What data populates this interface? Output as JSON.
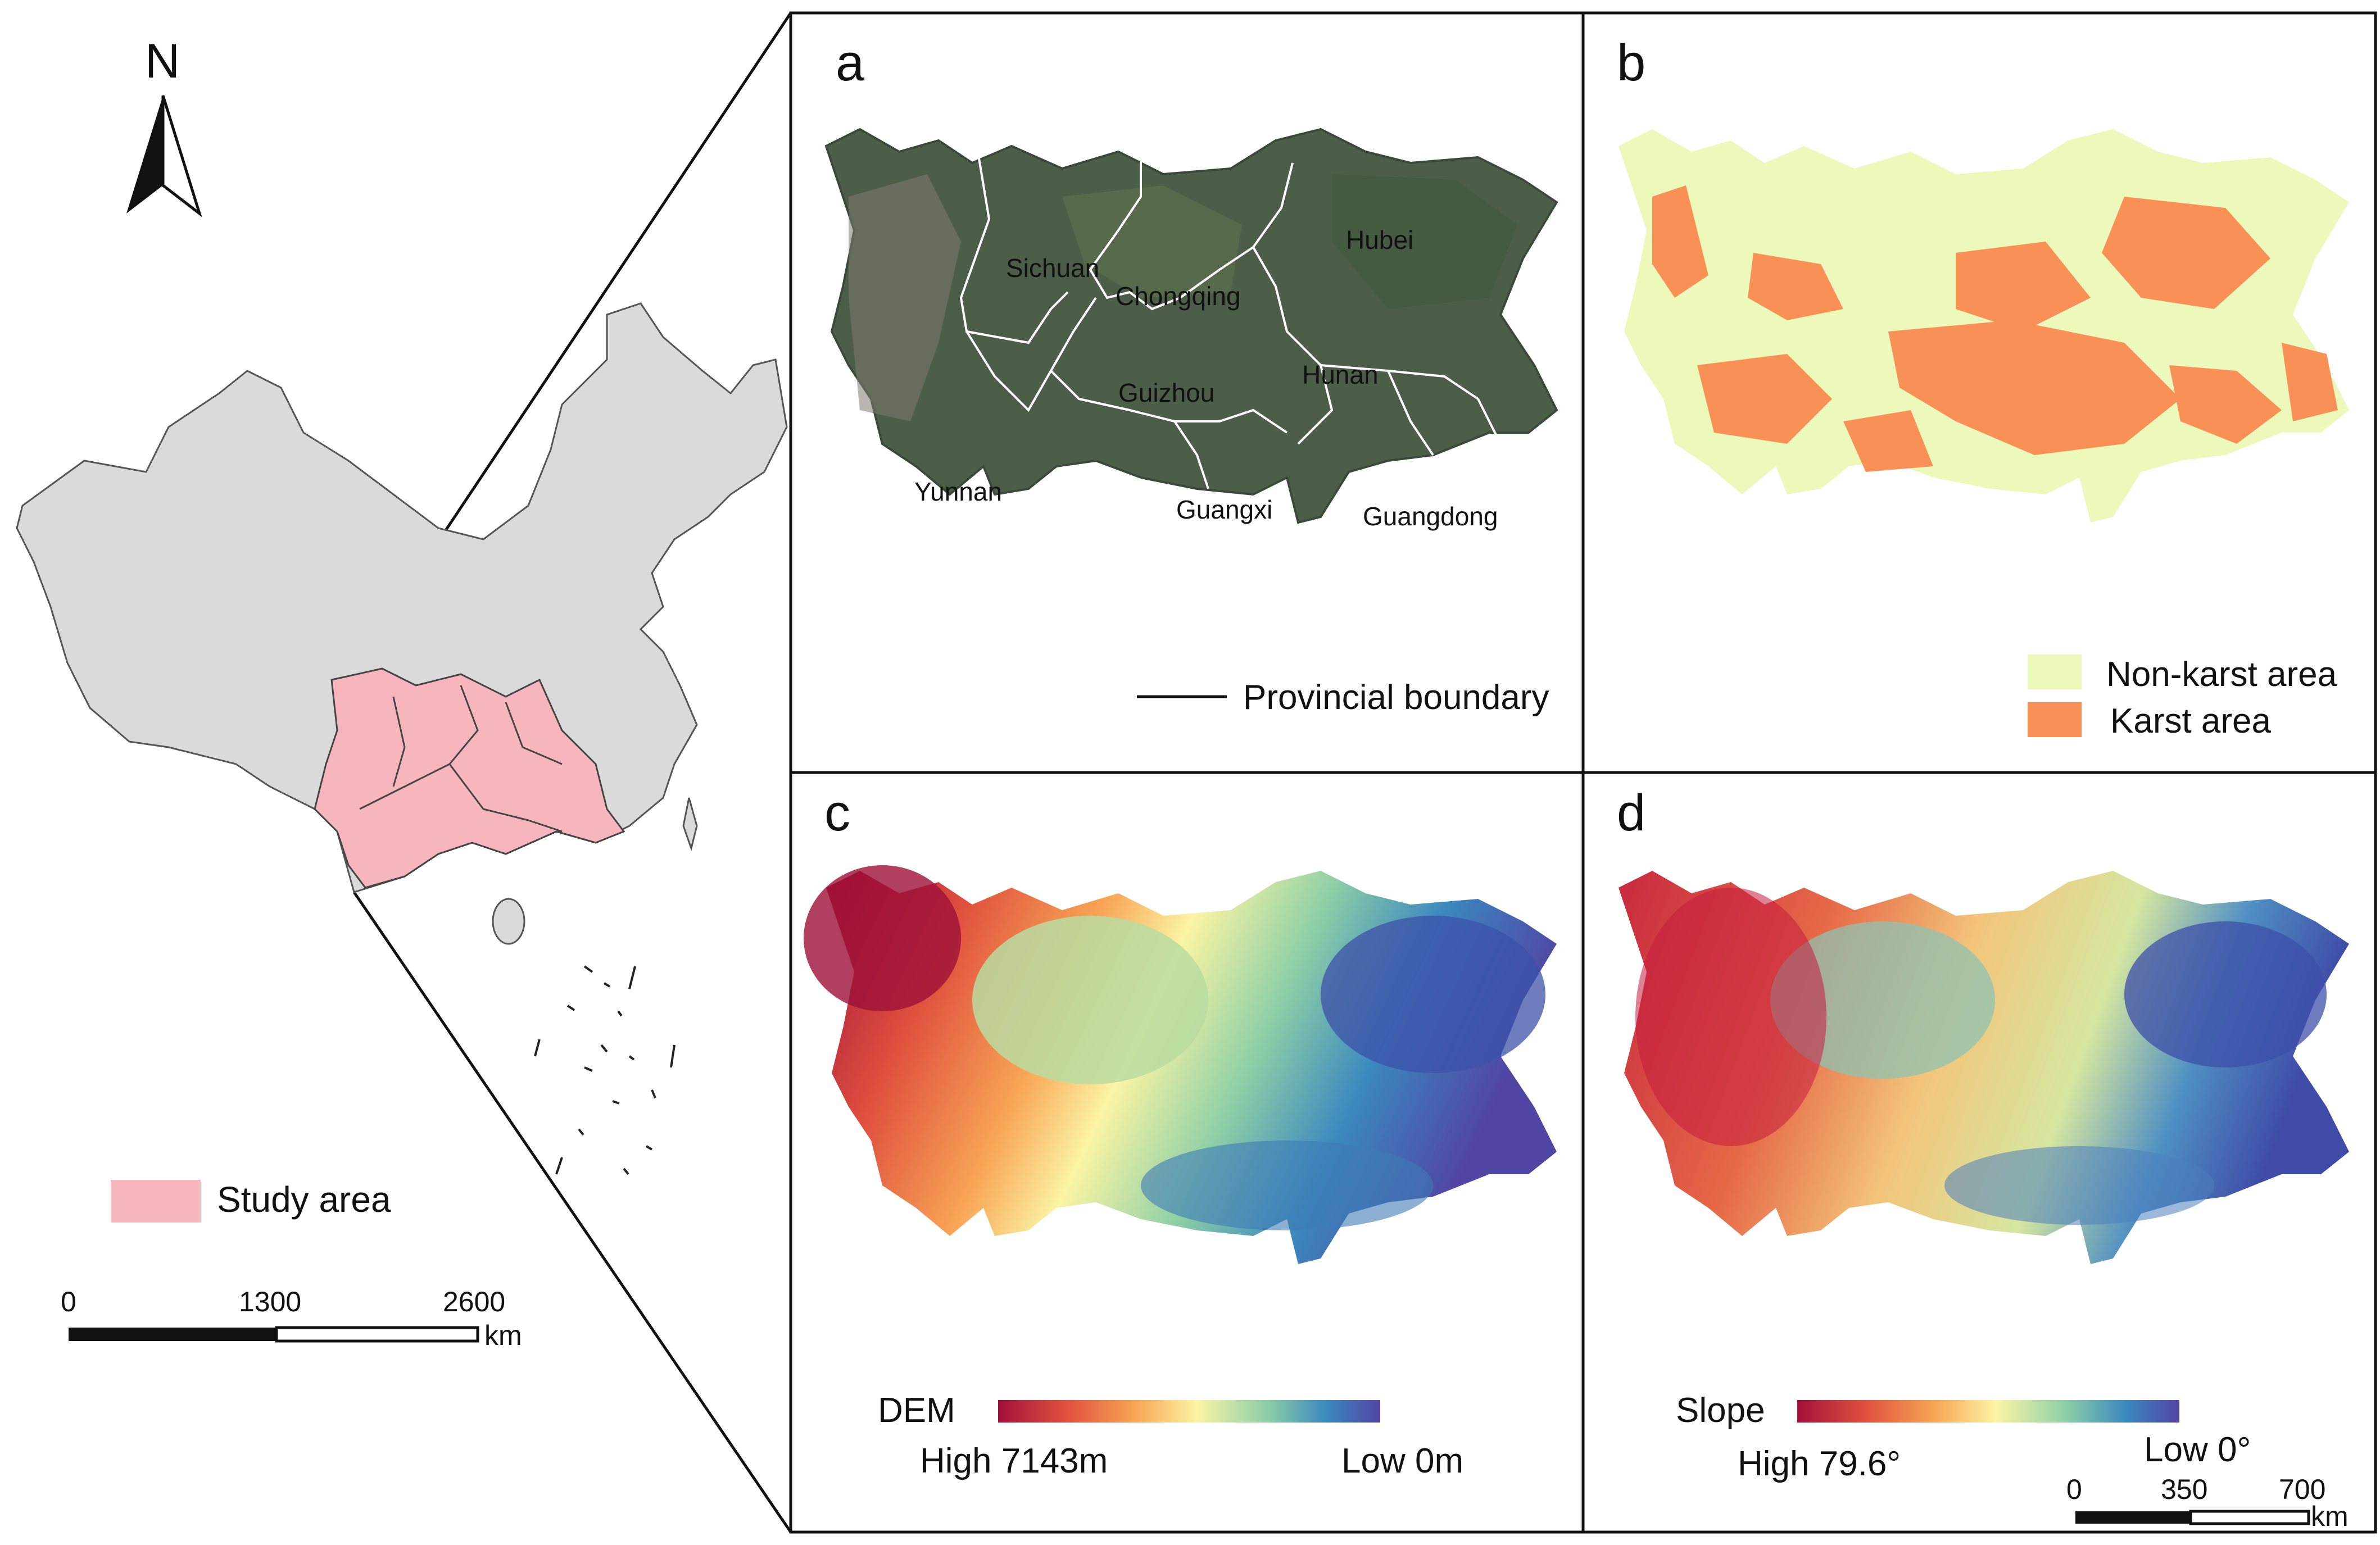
{
  "overview": {
    "north_label": "N",
    "legend_label": "Study area",
    "legend_color": "#f7b6bd",
    "scale_bar": {
      "ticks": [
        "0",
        "1300",
        "2600"
      ],
      "unit": "km"
    }
  },
  "panel_a": {
    "letter": "a",
    "provinces": [
      "Sichuan",
      "Chongqing",
      "Hubei",
      "Guizhou",
      "Hunan",
      "Yunnan",
      "Guangxi",
      "Guangdong"
    ],
    "legend_label": "Provincial boundary"
  },
  "panel_b": {
    "letter": "b",
    "legend": [
      {
        "label": "Non-karst area",
        "color": "#ecf9bb"
      },
      {
        "label": "Karst area",
        "color": "#f99157"
      }
    ]
  },
  "panel_c": {
    "letter": "c",
    "colorbar_title": "DEM",
    "high_label": "High 7143m",
    "low_label": "Low 0m"
  },
  "panel_d": {
    "letter": "d",
    "colorbar_title": "Slope",
    "high_label": "High 79.6°",
    "low_label": "Low 0°",
    "scale_bar": {
      "ticks": [
        "0",
        "350",
        "700"
      ],
      "unit": "km"
    }
  },
  "colors": {
    "china_fill": "#dadada",
    "satellite": "#4c5e48",
    "ramp": [
      "#a3103c",
      "#e0513e",
      "#f8a656",
      "#fbf4a4",
      "#8fd0a6",
      "#3b88bf",
      "#5145a3"
    ]
  }
}
